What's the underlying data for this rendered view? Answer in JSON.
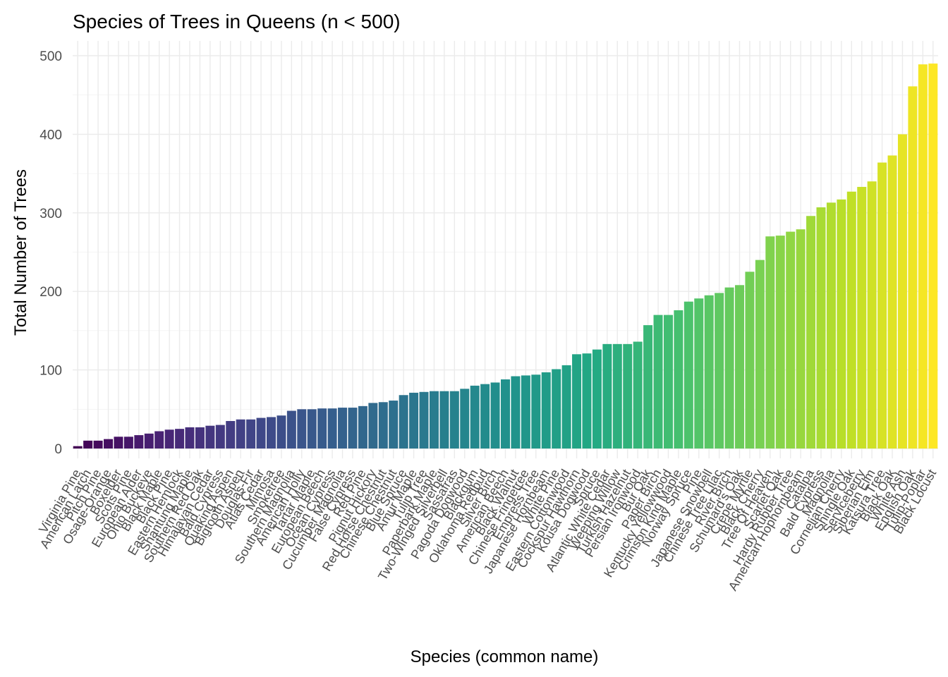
{
  "chart_data": {
    "type": "bar",
    "title": "Species of Trees in Queens (n < 500)",
    "xlabel": "Species (common name)",
    "ylabel": "Total Number of Trees",
    "ylim": [
      -15,
      500
    ],
    "yticks": [
      0,
      100,
      200,
      300,
      400,
      500
    ],
    "grid": true,
    "legend": "none",
    "color_scale": "viridis",
    "categories": [
      "Virginia Pine",
      "American Larch",
      "Pitch Pine",
      "Osage-Orange",
      "Boxelder",
      "Scots Pine",
      "European Alder",
      "Ohio Buckeye",
      "Black Maple",
      "Black Pine",
      "Eastern Hemlock",
      "Shantung Maple",
      "Southern Red Oak",
      "Himalayan Cedar",
      "Bald Cypress",
      "Quaking Aspen",
      "Bigtooth Aspen",
      "Douglas-Fir",
      "Atlas Cedar",
      "Mimosa",
      "Smoketree",
      "Southern Magnolia",
      "American Holly",
      "Tartar Maple",
      "European Beech",
      "Ocean Cypress",
      "Cucumber Magnolia",
      "False Cypress",
      "Red Pine",
      "Pignut Hickory",
      "Red Horse Chestnut",
      "Chinese Chestnut",
      "Blue Spruce",
      "Amur Maple",
      "Tulip Tree",
      "Paperbark Maple",
      "Two-Winged Silverbell",
      "Sassafras",
      "Pagoda Dogwood",
      "Blackgum",
      "Oklahoma Redbud",
      "Silver Birch",
      "American Beech",
      "Black Walnut",
      "Chinese Fringetree",
      "Empress Tree",
      "Japanese Hornbeam",
      "White Pine",
      "Eastern Cottonwood",
      "Cockspur Hawthorn",
      "Kousa Dogwood",
      "Spruce",
      "Atlantic White Cedar",
      "Weeping Willow",
      "Turkish Hazelnut",
      "Persian Ironwood",
      "Bur Oak",
      "Paper Birch",
      "Kentucky Yellowwood",
      "Crimson King Maple",
      "Norway Spruce",
      "Pine",
      "Japanese Snowbell",
      "Chinese Tree Lilac",
      "River Birch",
      "Schumard's Oak",
      "Crepe Myrtle",
      "Black Cherry",
      "Tree Of Heaven",
      "Scarlet Oak",
      "Hardy Rubber Tree",
      "American Hophornbeam",
      "Catalpa",
      "Bald Cypress ",
      "Magnolia",
      "Cornelian Cherry",
      "Shingle Oak",
      "Serviceberry",
      "Siberian Elm",
      "Katsura Tree",
      "Black Oak",
      "White Ash",
      "English Oak",
      "Tulip-Poplar",
      "Black Locust"
    ],
    "tick_labels": [
      "Virginia Pine",
      "American Larch",
      "Pitch Pine",
      "Osage-Orange",
      "Boxelder",
      "Scots Pine",
      "European Alder",
      "Ohio Buckeye",
      "Black Maple",
      "Black Pine",
      "Eastern Hemlock",
      "Shantung Maple",
      "Southern Red Oak",
      "Himalayan Cedar",
      "Bald Cypress",
      "Quaking Aspen",
      "Bigtooth Aspen",
      "Douglas-Fir",
      "Atlas Cedar",
      "Mimosa",
      "Smoketree",
      "Southern Magnolia",
      "American Holly",
      "Tartar Maple",
      "European Beech",
      "Ocean Cypress",
      "Cucumber Magnolia",
      "False Cypress",
      "Red Pine",
      "Pignut Hickory",
      "Red Horse Chestnut",
      "Chinese Chestnut",
      "Blue Spruce",
      "Amur Maple",
      "Tulip Tree",
      "Paperbark Maple",
      "Two-Winged Silverbell",
      "Sassafras",
      "Pagoda Dogwood",
      "Blackgum",
      "Oklahoma Redbud",
      "Silver Birch",
      "American Beech",
      "Black Walnut",
      "Chinese Fringetree",
      "Empress Tree",
      "Japanese Hornbeam",
      "White Pine",
      "Eastern Cottonwood",
      "Cockspur Hawthorn",
      "Kousa Dogwood",
      "Spruce",
      "Atlantic White Cedar",
      "Weeping Willow",
      "Turkish Hazelnut",
      "Persian Ironwood",
      "Bur Oak",
      "Paper Birch",
      "Kentucky Yellowwood",
      "Crimson King Maple",
      "Norway Spruce",
      "Pine",
      "Japanese Snowbell",
      "Chinese Tree Lilac",
      "River Birch",
      "Schumard's Oak",
      "Crepe Myrtle",
      "Black Cherry",
      "Tree Of Heaven",
      "Scarlet Oak",
      "Hardy Rubber Tree",
      "American Hophornbeam",
      "Catalpa",
      "Bald Cypress",
      "Magnolia",
      "Cornelian Cherry",
      "Shingle Oak",
      "Serviceberry",
      "Siberian Elm",
      "Katsura Tree",
      "Black Oak",
      "White Ash",
      "English Oak",
      "Tulip-Poplar",
      "Black Locust"
    ],
    "values": [
      3,
      10,
      10,
      12,
      15,
      15,
      17,
      19,
      22,
      24,
      25,
      27,
      27,
      29,
      30,
      35,
      37,
      37,
      39,
      40,
      42,
      48,
      50,
      50,
      51,
      51,
      52,
      52,
      54,
      58,
      59,
      61,
      68,
      71,
      72,
      73,
      73,
      73,
      76,
      80,
      82,
      84,
      88,
      92,
      93,
      94,
      97,
      101,
      106,
      120,
      121,
      126,
      133,
      133,
      133,
      136,
      157,
      170,
      170,
      176,
      187,
      191,
      195,
      198,
      205,
      208,
      225,
      240,
      270,
      271,
      276,
      279,
      296,
      307,
      313,
      317,
      327,
      333,
      340,
      364,
      373,
      400,
      461,
      489,
      490
    ]
  }
}
